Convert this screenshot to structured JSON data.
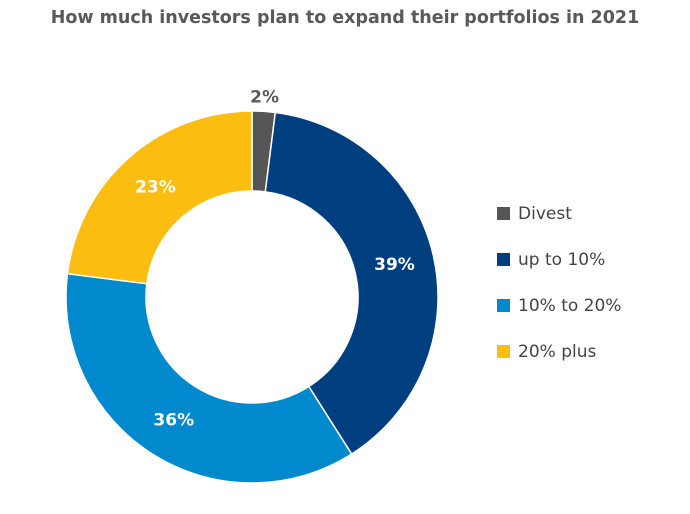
{
  "chart_data": {
    "type": "pie",
    "title": "How much investors plan to expand their portfolios in 2021",
    "categories": [
      "Divest",
      "up to 10%",
      "10% to 20%",
      "20% plus"
    ],
    "values": [
      2,
      39,
      36,
      23
    ],
    "labels": [
      "2%",
      "39%",
      "36%",
      "23%"
    ],
    "colors": [
      "#555555",
      "#003f7f",
      "#0089cc",
      "#fbbe10"
    ],
    "donut": true,
    "legend_position": "right"
  }
}
